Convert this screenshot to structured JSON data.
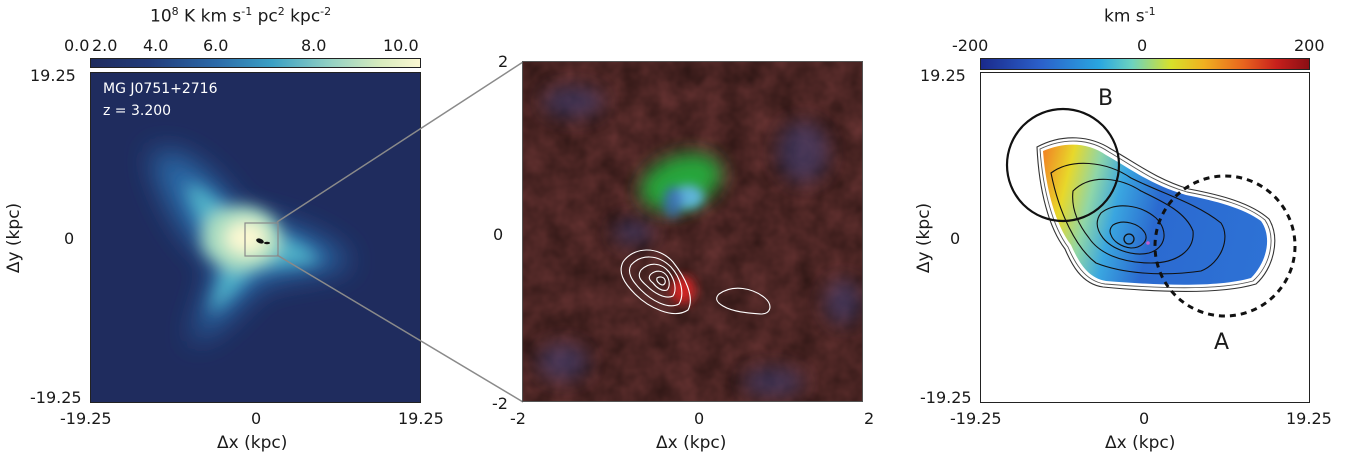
{
  "figure": {
    "panels": [
      {
        "id": "a",
        "colorbar": {
          "title": "10",
          "title_rest_1": "8",
          "title_rest_2": " K km s",
          "title_rest_3": "-1",
          "title_rest_4": " pc",
          "title_rest_5": "2",
          "title_rest_6": " kpc",
          "title_rest_7": "-2",
          "ticks": [
            "0.0",
            "2.0",
            "4.0",
            "6.0",
            "8.0",
            "10.0"
          ]
        },
        "annotation_name": "MG J0751+2716",
        "annotation_z": "z = 3.200",
        "x_ticks": [
          "-19.25",
          "0",
          "19.25"
        ],
        "y_ticks": [
          "19.25",
          "0",
          "-19.25"
        ],
        "xlabel": "Δx (kpc)",
        "ylabel": "Δy (kpc)"
      },
      {
        "id": "b",
        "x_ticks": [
          "-2",
          "0",
          "2"
        ],
        "y_ticks": [
          "2",
          "0",
          "-2"
        ],
        "xlabel": "Δx (kpc)"
      },
      {
        "id": "c",
        "colorbar": {
          "title": "km s",
          "title_sup": "-1",
          "ticks": [
            "-200",
            "0",
            "200"
          ]
        },
        "x_ticks": [
          "-19.25",
          "0",
          "19.25"
        ],
        "y_ticks": [
          "19.25",
          "0",
          "-19.25"
        ],
        "xlabel": "Δx (kpc)",
        "ylabel": "Δy (kpc)",
        "region_a": "A",
        "region_b": "B"
      }
    ],
    "colors": {
      "map_background": "#1f2c5e",
      "map_glow": "#f6f3c2",
      "velocity_red": "#b01c1c",
      "velocity_blue": "#2b5fc9"
    }
  }
}
